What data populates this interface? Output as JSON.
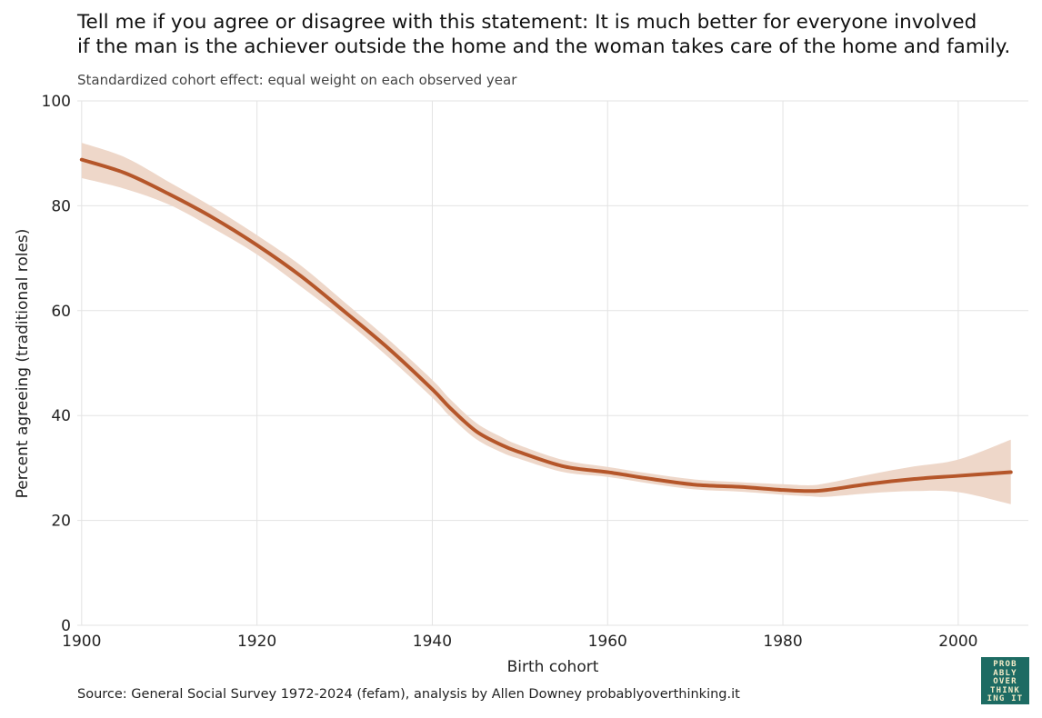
{
  "title_lines": [
    "Tell me if you agree or disagree with this statement: It is much better for everyone involved",
    "if the man is the achiever outside the home and the woman takes care of the home and family."
  ],
  "subtitle": "Standardized cohort effect: equal weight on each observed year",
  "caption": "Source: General Social Survey 1972-2024 (fefam), analysis by Allen Downey probablyoverthinking.it",
  "logo_lines": [
    "PROB",
    "ABLY",
    "OVER",
    "THINK",
    "ING IT"
  ],
  "colors": {
    "line": "#b5562a",
    "band": "#eed7c9",
    "grid": "#e3e3e3",
    "logo_bg": "#1d6b63"
  },
  "chart_data": {
    "type": "line",
    "xlabel": "Birth cohort",
    "ylabel": "Percent agreeing (traditional roles)",
    "xlim": [
      1899.5,
      2008
    ],
    "ylim": [
      0,
      100
    ],
    "xticks": [
      "1900",
      "1920",
      "1940",
      "1960",
      "1980",
      "2000"
    ],
    "yticks": [
      "0",
      "20",
      "40",
      "60",
      "80",
      "100"
    ],
    "grid": true,
    "series": [
      {
        "x": [
          1900,
          1905,
          1910,
          1915,
          1920,
          1925,
          1930,
          1935,
          1940,
          1942,
          1945,
          1948,
          1950,
          1955,
          1960,
          1965,
          1970,
          1975,
          1980,
          1983,
          1985,
          1990,
          1995,
          2000,
          2006
        ],
        "y": [
          88.8,
          86.2,
          82.2,
          77.7,
          72.5,
          66.6,
          59.8,
          52.8,
          45.0,
          41.5,
          37.0,
          34.3,
          33.0,
          30.3,
          29.2,
          27.9,
          26.8,
          26.4,
          25.8,
          25.6,
          25.8,
          27.0,
          27.9,
          28.5,
          29.2
        ],
        "lower": [
          85.3,
          83.2,
          80.2,
          75.7,
          70.7,
          64.6,
          58.2,
          51.1,
          43.4,
          39.9,
          35.5,
          32.9,
          31.7,
          29.2,
          28.3,
          27.0,
          25.9,
          25.5,
          24.9,
          24.6,
          24.5,
          25.2,
          25.6,
          25.4,
          23.1
        ],
        "upper": [
          92.0,
          89.2,
          84.5,
          79.7,
          74.4,
          68.6,
          61.6,
          54.5,
          46.8,
          43.2,
          38.6,
          35.8,
          34.3,
          31.5,
          30.2,
          28.9,
          27.8,
          27.3,
          26.9,
          26.7,
          27.1,
          28.8,
          30.3,
          31.6,
          35.4
        ]
      }
    ]
  }
}
